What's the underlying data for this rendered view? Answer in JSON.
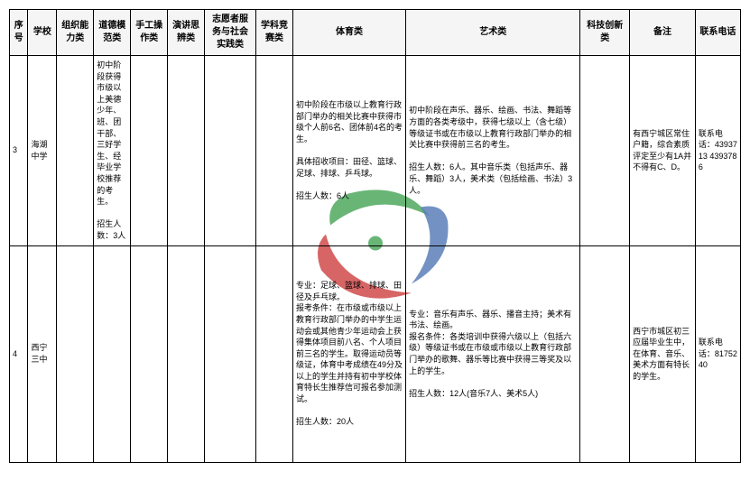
{
  "watermark": {
    "colors": {
      "red": "#d04a4a",
      "green": "#4fa85e",
      "blue": "#5a7fb8"
    }
  },
  "headers": {
    "idx": "序号",
    "school": "学校",
    "org": "组织能力类",
    "moral": "道德模范类",
    "craft": "手工操作类",
    "speech": "演讲思辨类",
    "volunteer": "志愿者服务与社会实践类",
    "subject": "学科竞赛类",
    "sport": "体育类",
    "art": "艺术类",
    "tech": "科技创新类",
    "remark": "备注",
    "phone": "联系电话"
  },
  "rows": [
    {
      "idx": "3",
      "school": "海湖中学",
      "org": "",
      "moral": "初中阶段获得市级以上美德少年、班、团干部、三好学生、经毕业学校推荐的考生。\n\n招生人数：3人",
      "craft": "",
      "speech": "",
      "volunteer": "",
      "subject": "",
      "sport": "初中阶段在市级以上教育行政部门举办的相关比赛中获得市级个人前6名、团体前4名的考生。\n\n具体招收项目：田径、篮球、足球、排球、乒乓球。\n\n招生人数：6人",
      "art": "初中阶段在声乐、器乐、绘画、书法、舞蹈等方面的各类考级中，获得七级以上（含七级）等级证书或在市级以上教育行政部门举办的相关比赛中获得前三名的考生。\n\n招生人数：6人。其中音乐类（包括声乐、器乐、舞蹈）3人，美术类（包括绘画、书法）3人。",
      "tech": "",
      "remark": "有西宁城区常住户籍，综合素质评定至少有1A并不得有C、D。",
      "phone": "联系电话：4393713  4393786"
    },
    {
      "idx": "4",
      "school": "西宁三中",
      "org": "",
      "moral": "",
      "craft": "",
      "speech": "",
      "volunteer": "",
      "subject": "",
      "sport": "专业：足球、篮球、排球、田径及乒乓球。\n报考条件：在市级或市级以上教育行政部门举办的中学生运动会或其他青少年运动会上获得集体项目前八名、个人项目前三名的学生。取得运动员等级证，体育中考成绩在49分及以上的学生并持有初中学校体育特长生推荐信可报名参加测试。\n\n招生人数：20人",
      "art": "专业：音乐有声乐、器乐、播音主持；美术有书法、绘画。\n报名条件：各类培训中获得六级以上（包括六级）等级证书或在市级或市级以上教育行政部门举办的歌舞、器乐等比赛中获得三等奖及以上的学生。\n\n招生人数：12人(音乐7人、美术5人)",
      "tech": "",
      "remark": "西宁市城区初三应届毕业生中，在体育、音乐、美术方面有特长的学生。",
      "phone": "联系电话：8175240"
    }
  ]
}
